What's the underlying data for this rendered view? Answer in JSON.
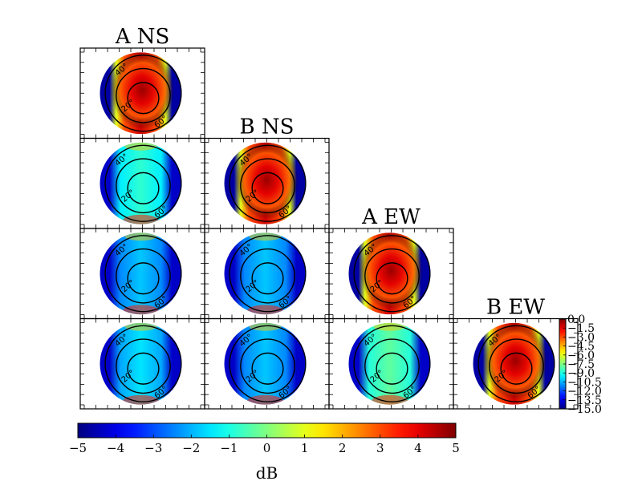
{
  "chart_data": {
    "type": "heatmap",
    "description_kind": "triangular matrix of polar beam maps",
    "panels": [
      {
        "row": 0,
        "col": 0,
        "title": "A NS",
        "kind": "beam",
        "peak_db": 0.0,
        "edge_db": -8.0
      },
      {
        "row": 1,
        "col": 0,
        "title": "",
        "kind": "ratio",
        "mean_db": -0.8
      },
      {
        "row": 1,
        "col": 1,
        "title": "B NS",
        "kind": "beam",
        "peak_db": 0.0,
        "edge_db": -8.0
      },
      {
        "row": 2,
        "col": 0,
        "title": "",
        "kind": "ratio",
        "mean_db": -1.8
      },
      {
        "row": 2,
        "col": 1,
        "title": "",
        "kind": "ratio",
        "mean_db": -1.8
      },
      {
        "row": 2,
        "col": 2,
        "title": "A EW",
        "kind": "beam",
        "peak_db": 0.0,
        "edge_db": -8.0
      },
      {
        "row": 3,
        "col": 0,
        "title": "",
        "kind": "ratio",
        "mean_db": -1.5
      },
      {
        "row": 3,
        "col": 1,
        "title": "",
        "kind": "ratio",
        "mean_db": -1.8
      },
      {
        "row": 3,
        "col": 2,
        "title": "",
        "kind": "ratio",
        "mean_db": -0.3
      },
      {
        "row": 3,
        "col": 3,
        "title": "B EW",
        "kind": "beam",
        "peak_db": 0.0,
        "edge_db": -8.0
      }
    ],
    "contour_labels": [
      "20",
      "40",
      "60"
    ],
    "beam_colorbar": {
      "range": [
        -15.0,
        0.0
      ],
      "ticks": [
        "0.0",
        "−1.5",
        "−3.0",
        "−4.5",
        "−6.0",
        "−7.5",
        "−9.0",
        "−10.5",
        "−12.0",
        "−13.5",
        "−15.0"
      ]
    },
    "ratio_colorbar": {
      "range": [
        -5,
        5
      ],
      "ticks": [
        "−5",
        "−4",
        "−3",
        "−2",
        "−1",
        "0",
        "1",
        "2",
        "3",
        "4",
        "5"
      ],
      "label": "dB"
    },
    "colormap": "jet"
  }
}
